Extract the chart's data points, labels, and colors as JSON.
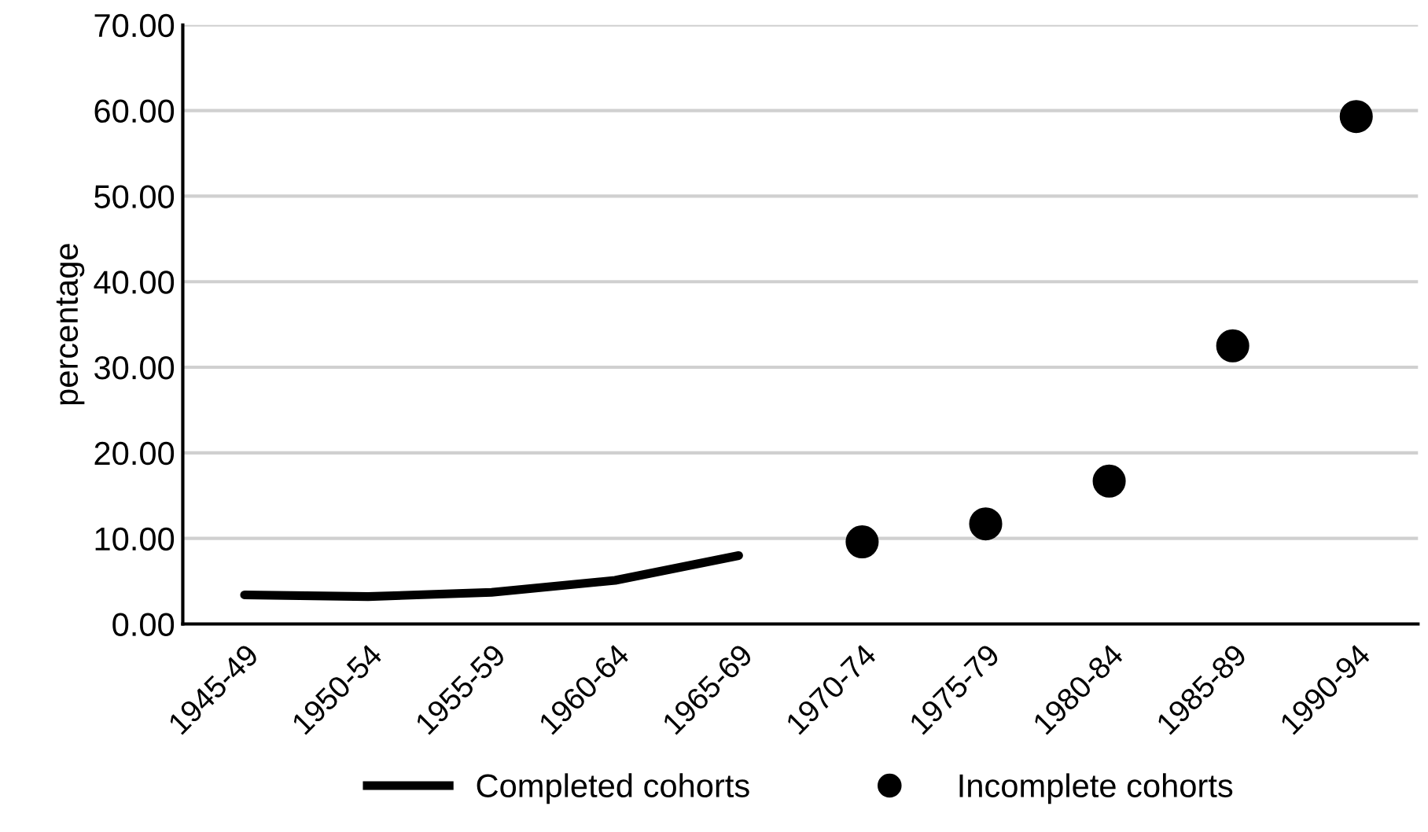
{
  "chart_data": {
    "type": "line",
    "ylabel": "percentage",
    "categories": [
      "1945-49",
      "1950-54",
      "1955-59",
      "1960-64",
      "1965-69",
      "1970-74",
      "1975-79",
      "1980-84",
      "1985-89",
      "1990-94"
    ],
    "series": [
      {
        "name": "Completed cohorts",
        "color": "#000000",
        "marker": "none",
        "values": [
          3.4,
          3.2,
          3.7,
          5.1,
          8.0,
          null,
          null,
          null,
          null,
          null
        ]
      },
      {
        "name": "Incomplete cohorts",
        "type": "scatter",
        "color": "#000000",
        "marker": "circle",
        "values": [
          null,
          null,
          null,
          null,
          null,
          9.6,
          11.7,
          16.7,
          32.5,
          59.3
        ]
      }
    ],
    "ylim": [
      0,
      70
    ],
    "yticks": [
      {
        "value": 0,
        "label": "0.00"
      },
      {
        "value": 10,
        "label": "10.00"
      },
      {
        "value": 20,
        "label": "20.00"
      },
      {
        "value": 30,
        "label": "30.00"
      },
      {
        "value": 40,
        "label": "40.00"
      },
      {
        "value": 50,
        "label": "50.00"
      },
      {
        "value": 60,
        "label": "60.00"
      },
      {
        "value": 70,
        "label": "70.00"
      }
    ],
    "grid": "y",
    "legend": "bottom"
  }
}
